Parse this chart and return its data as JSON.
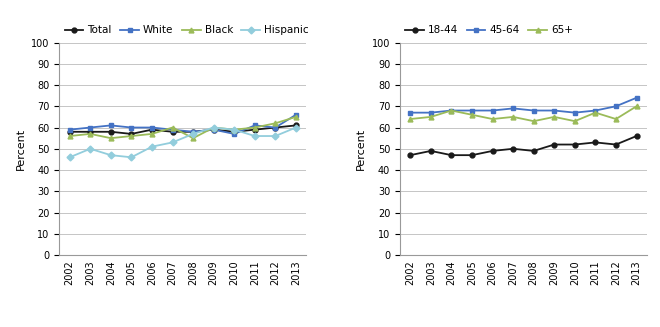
{
  "years": [
    2002,
    2003,
    2004,
    2005,
    2006,
    2007,
    2008,
    2009,
    2010,
    2011,
    2012,
    2013
  ],
  "left": {
    "Total": [
      58,
      58,
      58,
      57,
      59,
      58,
      58,
      59,
      58,
      59,
      60,
      61
    ],
    "White": [
      59,
      60,
      61,
      60,
      60,
      59,
      58,
      59,
      57,
      61,
      60,
      66
    ],
    "Black": [
      56,
      57,
      55,
      56,
      57,
      60,
      55,
      60,
      59,
      60,
      62,
      65
    ],
    "Hispanic": [
      46,
      50,
      47,
      46,
      51,
      53,
      57,
      60,
      59,
      56,
      56,
      60
    ]
  },
  "right": {
    "18-44": [
      47,
      49,
      47,
      47,
      49,
      50,
      49,
      52,
      52,
      53,
      52,
      56
    ],
    "45-64": [
      67,
      67,
      68,
      68,
      68,
      69,
      68,
      68,
      67,
      68,
      70,
      74
    ],
    "65+": [
      64,
      65,
      68,
      66,
      64,
      65,
      63,
      65,
      63,
      67,
      64,
      70
    ]
  },
  "left_colors": [
    "#1a1a1a",
    "#4472c4",
    "#9bbb59",
    "#92cddc"
  ],
  "right_colors": [
    "#1a1a1a",
    "#4472c4",
    "#9bbb59"
  ],
  "left_markers": [
    "o",
    "s",
    "^",
    "D"
  ],
  "right_markers": [
    "o",
    "s",
    "^"
  ],
  "left_labels": [
    "Total",
    "White",
    "Black",
    "Hispanic"
  ],
  "right_labels": [
    "18-44",
    "45-64",
    "65+"
  ],
  "ylabel": "Percent",
  "ylim": [
    0,
    100
  ],
  "yticks": [
    0,
    10,
    20,
    30,
    40,
    50,
    60,
    70,
    80,
    90,
    100
  ],
  "bg_color": "#ffffff",
  "grid_color": "#bbbbbb"
}
